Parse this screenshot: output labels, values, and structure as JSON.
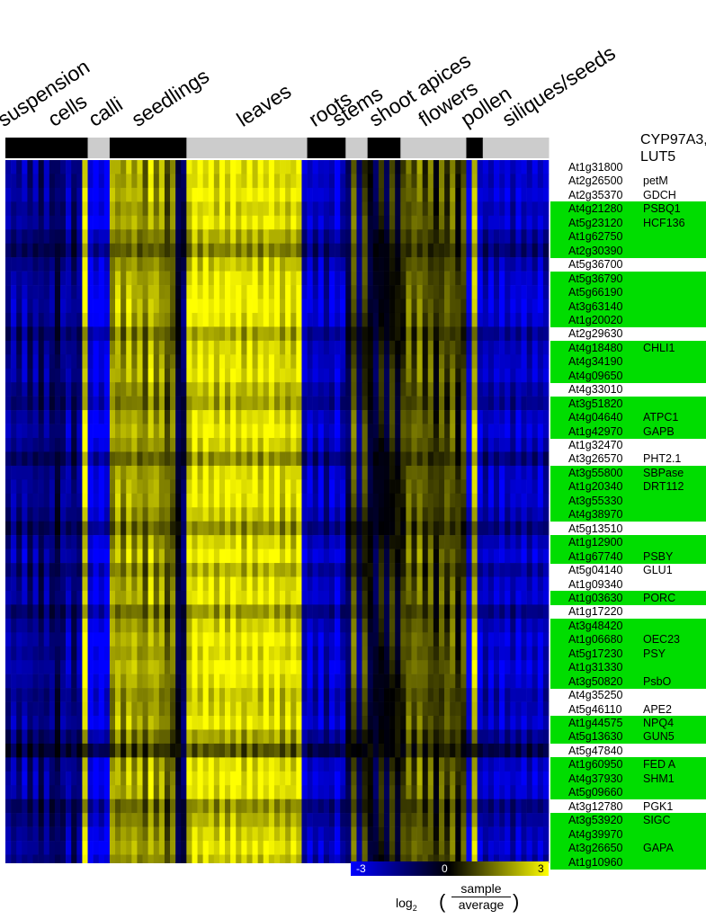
{
  "chart_data": {
    "type": "heatmap",
    "tissue_groups": [
      {
        "label": "suspension",
        "cells": 15
      },
      {
        "label": "cells",
        "cells": 0
      },
      {
        "label": "calli",
        "cells": 4
      },
      {
        "label": "seedlings",
        "cells": 14
      },
      {
        "label": "leaves",
        "cells": 22
      },
      {
        "label": "roots",
        "cells": 7
      },
      {
        "label": "stems",
        "cells": 4
      },
      {
        "label": "shoot apices",
        "cells": 6
      },
      {
        "label": "flowers",
        "cells": 12
      },
      {
        "label": "pollen",
        "cells": 3
      },
      {
        "label": "siliques/seeds",
        "cells": 12
      }
    ],
    "band_shade": [
      "black",
      "gray",
      "black",
      "gray",
      "black",
      "gray",
      "black",
      "gray",
      "black",
      "gray"
    ],
    "profile": [
      -1.8,
      -2.1,
      -1.6,
      -2.3,
      -1.4,
      -2.0,
      -1.2,
      -1.9,
      -1.5,
      -0.9,
      -1.7,
      -2.2,
      -1.3,
      -1.8,
      2.8,
      -3,
      -3,
      -3,
      -3,
      1.8,
      2.2,
      1.6,
      2.4,
      1.9,
      2.1,
      1.3,
      2.5,
      1.7,
      2.0,
      1.1,
      1.4,
      -0.6,
      -1.2,
      2.6,
      2.9,
      2.7,
      3.0,
      2.8,
      2.6,
      2.9,
      2.7,
      3.0,
      2.8,
      2.5,
      2.9,
      2.7,
      2.6,
      3.0,
      2.8,
      2.9,
      2.4,
      2.7,
      2.5,
      2.9,
      -2.4,
      -2.6,
      -2.2,
      -2.8,
      -1.9,
      -2.5,
      -2.7,
      -2.3,
      -1.0,
      1.2,
      -1.4,
      0.8,
      -0.4,
      -0.8,
      0.2,
      -0.6,
      0.5,
      -0.2,
      0.6,
      1.4,
      0.9,
      1.6,
      0.7,
      1.2,
      0.3,
      1.1,
      0.8,
      1.3,
      0.4,
      0.9,
      -2.8,
      2.4,
      -2.6,
      -2.1,
      -2.5,
      -2.3,
      -2.7,
      -2.4,
      -2.2,
      -2.6,
      -2.5,
      -2.3,
      -2.4,
      -2.6,
      -2.2
    ],
    "genes": [
      {
        "id": "At1g31800",
        "symbol": "",
        "highlighted": false,
        "row_mod": 1.0
      },
      {
        "id": "At2g26500",
        "symbol": "petM",
        "highlighted": false,
        "row_mod": 0.95
      },
      {
        "id": "At2g35370",
        "symbol": "GDCH",
        "highlighted": false,
        "row_mod": 1.05
      },
      {
        "id": "At4g21280",
        "symbol": "PSBQ1",
        "highlighted": true,
        "row_mod": 0.9
      },
      {
        "id": "At5g23120",
        "symbol": "HCF136",
        "highlighted": true,
        "row_mod": 1.0
      },
      {
        "id": "At1g62750",
        "symbol": "",
        "highlighted": true,
        "row_mod": 0.75
      },
      {
        "id": "At2g30390",
        "symbol": "",
        "highlighted": true,
        "row_mod": 0.55
      },
      {
        "id": "At5g36700",
        "symbol": "",
        "highlighted": false,
        "row_mod": 0.85
      },
      {
        "id": "At5g36790",
        "symbol": "",
        "highlighted": true,
        "row_mod": 1.0
      },
      {
        "id": "At5g66190",
        "symbol": "",
        "highlighted": true,
        "row_mod": 1.05
      },
      {
        "id": "At3g63140",
        "symbol": "",
        "highlighted": true,
        "row_mod": 1.1
      },
      {
        "id": "At1g20020",
        "symbol": "",
        "highlighted": true,
        "row_mod": 1.0
      },
      {
        "id": "At2g29630",
        "symbol": "",
        "highlighted": false,
        "row_mod": 0.7
      },
      {
        "id": "At4g18480",
        "symbol": "CHLI1",
        "highlighted": true,
        "row_mod": 0.9
      },
      {
        "id": "At4g34190",
        "symbol": "",
        "highlighted": true,
        "row_mod": 0.95
      },
      {
        "id": "At4g09650",
        "symbol": "",
        "highlighted": true,
        "row_mod": 1.0
      },
      {
        "id": "At4g33010",
        "symbol": "",
        "highlighted": false,
        "row_mod": 0.8
      },
      {
        "id": "At3g51820",
        "symbol": "",
        "highlighted": true,
        "row_mod": 0.7
      },
      {
        "id": "At4g04640",
        "symbol": "ATPC1",
        "highlighted": true,
        "row_mod": 0.95
      },
      {
        "id": "At1g42970",
        "symbol": "GAPB",
        "highlighted": true,
        "row_mod": 1.05
      },
      {
        "id": "At1g32470",
        "symbol": "",
        "highlighted": false,
        "row_mod": 0.9
      },
      {
        "id": "At3g26570",
        "symbol": "PHT2.1",
        "highlighted": false,
        "row_mod": 0.6
      },
      {
        "id": "At3g55800",
        "symbol": "SBPase",
        "highlighted": true,
        "row_mod": 0.95
      },
      {
        "id": "At1g20340",
        "symbol": "DRT112",
        "highlighted": true,
        "row_mod": 1.0
      },
      {
        "id": "At3g55330",
        "symbol": "",
        "highlighted": true,
        "row_mod": 1.0
      },
      {
        "id": "At4g38970",
        "symbol": "",
        "highlighted": true,
        "row_mod": 0.85
      },
      {
        "id": "At5g13510",
        "symbol": "",
        "highlighted": false,
        "row_mod": 0.6
      },
      {
        "id": "At1g12900",
        "symbol": "",
        "highlighted": true,
        "row_mod": 0.9
      },
      {
        "id": "At1g67740",
        "symbol": "PSBY",
        "highlighted": true,
        "row_mod": 1.05
      },
      {
        "id": "At5g04140",
        "symbol": "GLU1",
        "highlighted": false,
        "row_mod": 0.75
      },
      {
        "id": "At1g09340",
        "symbol": "",
        "highlighted": false,
        "row_mod": 0.95
      },
      {
        "id": "At1g03630",
        "symbol": "PORC",
        "highlighted": true,
        "row_mod": 1.0
      },
      {
        "id": "At1g17220",
        "symbol": "",
        "highlighted": false,
        "row_mod": 0.65
      },
      {
        "id": "At3g48420",
        "symbol": "",
        "highlighted": true,
        "row_mod": 0.9
      },
      {
        "id": "At1g06680",
        "symbol": "OEC23",
        "highlighted": true,
        "row_mod": 1.05
      },
      {
        "id": "At5g17230",
        "symbol": "PSY",
        "highlighted": true,
        "row_mod": 0.95
      },
      {
        "id": "At1g31330",
        "symbol": "",
        "highlighted": true,
        "row_mod": 1.1
      },
      {
        "id": "At3g50820",
        "symbol": "PsbO",
        "highlighted": true,
        "row_mod": 1.0
      },
      {
        "id": "At4g35250",
        "symbol": "",
        "highlighted": false,
        "row_mod": 0.85
      },
      {
        "id": "At5g46110",
        "symbol": "APE2",
        "highlighted": false,
        "row_mod": 0.9
      },
      {
        "id": "At1g44575",
        "symbol": "NPQ4",
        "highlighted": true,
        "row_mod": 1.0
      },
      {
        "id": "At5g13630",
        "symbol": "GUN5",
        "highlighted": true,
        "row_mod": 0.7
      },
      {
        "id": "At5g47840",
        "symbol": "",
        "highlighted": false,
        "row_mod": 0.35
      },
      {
        "id": "At1g60950",
        "symbol": "FED A",
        "highlighted": true,
        "row_mod": 0.95
      },
      {
        "id": "At4g37930",
        "symbol": "SHM1",
        "highlighted": true,
        "row_mod": 1.05
      },
      {
        "id": "At5g09660",
        "symbol": "",
        "highlighted": true,
        "row_mod": 1.0
      },
      {
        "id": "At3g12780",
        "symbol": "PGK1",
        "highlighted": false,
        "row_mod": 0.6
      },
      {
        "id": "At3g53920",
        "symbol": "SIGC",
        "highlighted": true,
        "row_mod": 0.75
      },
      {
        "id": "At4g39970",
        "symbol": "",
        "highlighted": true,
        "row_mod": 0.9
      },
      {
        "id": "At3g26650",
        "symbol": "GAPA",
        "highlighted": true,
        "row_mod": 1.0
      },
      {
        "id": "At1g10960",
        "symbol": "",
        "highlighted": true,
        "row_mod": 0.85
      }
    ],
    "header": {
      "line1": "CYP97A3,",
      "line2": "LUT5"
    },
    "color_scale": {
      "min": -3,
      "mid": 0,
      "max": 3,
      "min_label": "-3",
      "mid_label": "0",
      "max_label": "3",
      "colors": {
        "low": "#0000ff",
        "mid": "#000000",
        "high": "#ffff00"
      }
    },
    "legend_formula": {
      "log": "log",
      "base": "2",
      "numerator": "sample",
      "denominator": "average",
      "open": "(",
      "close": ")"
    },
    "highlight_color": "#00dd00"
  }
}
